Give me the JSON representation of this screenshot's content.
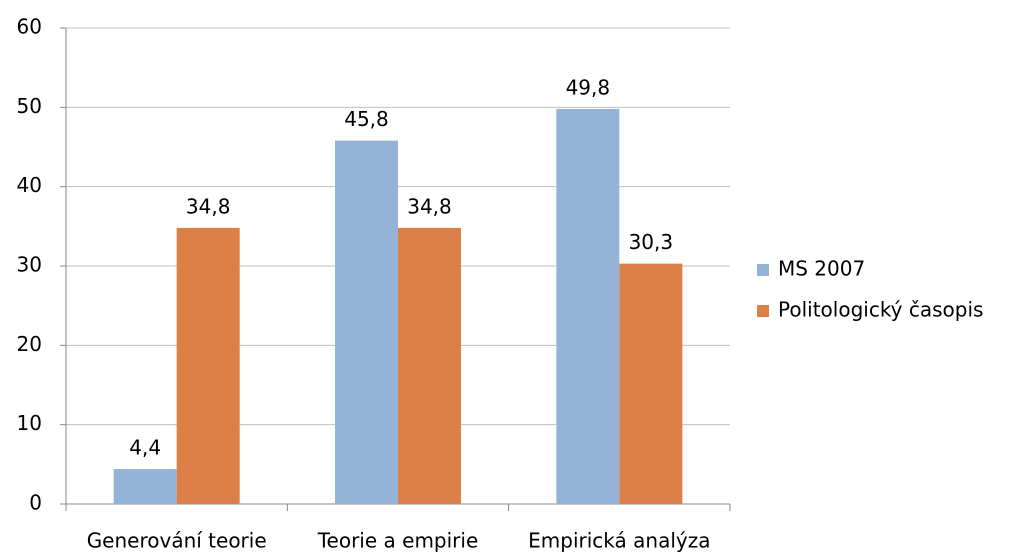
{
  "chart_data": {
    "type": "bar",
    "categories": [
      "Generování teorie",
      "Teorie a empirie",
      "Empirická analýza"
    ],
    "series": [
      {
        "name": "MS 2007",
        "color": "#95b3d7",
        "values": [
          4.4,
          45.8,
          49.8
        ],
        "value_labels": [
          "4,4",
          "45,8",
          "49,8"
        ]
      },
      {
        "name": "Politologický časopis",
        "color": "#dd8047",
        "values": [
          34.8,
          34.8,
          30.3
        ],
        "value_labels": [
          "34,8",
          "34,8",
          "30,3"
        ]
      }
    ],
    "ylim": [
      0,
      60
    ],
    "yticks": [
      0,
      10,
      20,
      30,
      40,
      50,
      60
    ],
    "grid": true,
    "legend": "right"
  }
}
